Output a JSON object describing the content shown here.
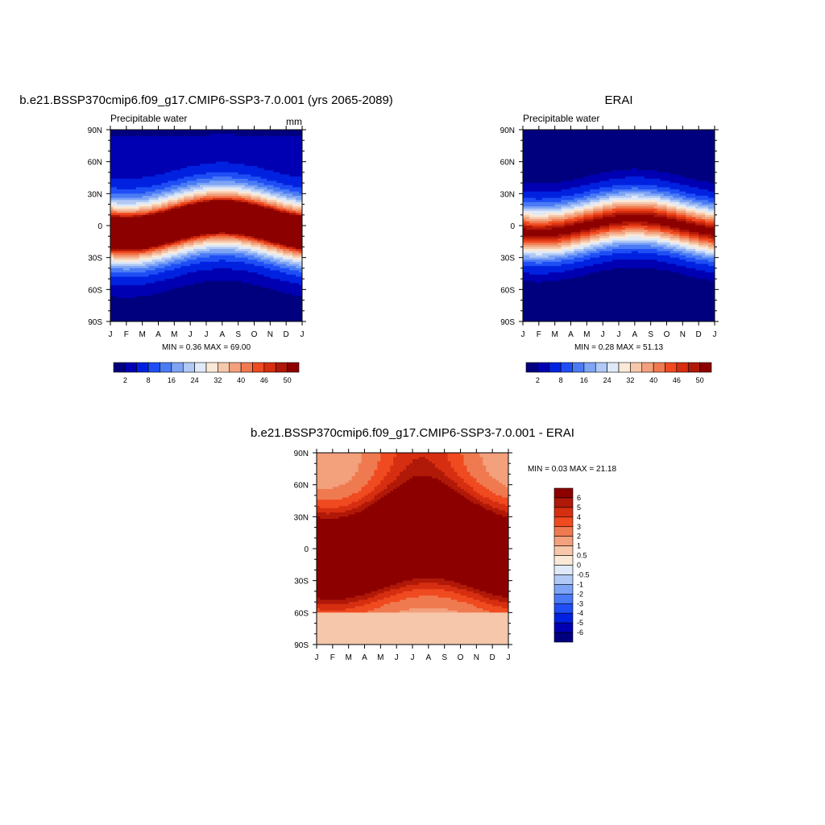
{
  "chart_data": [
    {
      "type": "heatmap",
      "title": "b.e21.BSSP370cmip6.f09_g17.CMIP6-SSP3-7.0.001 (yrs 2065-2089)",
      "subtitle_left": "Precipitable water",
      "subtitle_right": "mm",
      "x_ticks": [
        "J",
        "F",
        "M",
        "A",
        "M",
        "J",
        "J",
        "A",
        "S",
        "O",
        "N",
        "D",
        "J"
      ],
      "y_ticks": [
        "90N",
        "60N",
        "30N",
        "0",
        "30S",
        "60S",
        "90S"
      ],
      "y_tick_values": [
        90,
        60,
        30,
        0,
        -30,
        -60,
        -90
      ],
      "stats": "MIN =   0.36 MAX =  69.00",
      "min": 0.36,
      "max": 69.0,
      "colorbar": {
        "orientation": "horizontal",
        "levels": [
          0,
          2,
          4,
          8,
          12,
          16,
          20,
          24,
          28,
          32,
          36,
          40,
          43,
          46,
          48,
          50
        ],
        "labels": [
          "2",
          "8",
          "16",
          "24",
          "32",
          "40",
          "46",
          "50"
        ],
        "label_index": [
          1,
          3,
          5,
          7,
          9,
          11,
          13,
          15
        ]
      }
    },
    {
      "type": "heatmap",
      "title": "ERAI",
      "subtitle_left": "Precipitable water",
      "x_ticks": [
        "J",
        "F",
        "M",
        "A",
        "M",
        "J",
        "J",
        "A",
        "S",
        "O",
        "N",
        "D",
        "J"
      ],
      "y_ticks": [
        "90N",
        "60N",
        "30N",
        "0",
        "30S",
        "60S",
        "90S"
      ],
      "y_tick_values": [
        90,
        60,
        30,
        0,
        -30,
        -60,
        -90
      ],
      "stats": "MIN =   0.28 MAX =  51.13",
      "min": 0.28,
      "max": 51.13,
      "colorbar": {
        "orientation": "horizontal",
        "levels": [
          0,
          2,
          4,
          8,
          12,
          16,
          20,
          24,
          28,
          32,
          36,
          40,
          43,
          46,
          48,
          50
        ],
        "labels": [
          "2",
          "8",
          "16",
          "24",
          "32",
          "40",
          "46",
          "50"
        ],
        "label_index": [
          1,
          3,
          5,
          7,
          9,
          11,
          13,
          15
        ]
      }
    },
    {
      "type": "heatmap",
      "title": "b.e21.BSSP370cmip6.f09_g17.CMIP6-SSP3-7.0.001 - ERAI",
      "x_ticks": [
        "J",
        "F",
        "M",
        "A",
        "M",
        "J",
        "J",
        "A",
        "S",
        "O",
        "N",
        "D",
        "J"
      ],
      "y_ticks": [
        "90N",
        "60N",
        "30N",
        "0",
        "30S",
        "60S",
        "90S"
      ],
      "y_tick_values": [
        90,
        60,
        30,
        0,
        -30,
        -60,
        -90
      ],
      "stats": "MIN =   0.03 MAX =  21.18",
      "min": 0.03,
      "max": 21.18,
      "colorbar": {
        "orientation": "vertical",
        "labels": [
          "6",
          "5",
          "4",
          "3",
          "2",
          "1",
          "0.5",
          "0",
          "-0.5",
          "-1",
          "-2",
          "-3",
          "-4",
          "-5",
          "-6"
        ]
      }
    }
  ],
  "palettes": {
    "blue_red_16": [
      "#00007f",
      "#0000b2",
      "#0022e0",
      "#1f4ef5",
      "#4a7bf5",
      "#7ea4f5",
      "#b0c9f5",
      "#dfe9f8",
      "#fbe9d8",
      "#f6c7aa",
      "#f3a07c",
      "#f07a50",
      "#f04a20",
      "#d62e10",
      "#b01808",
      "#8c0000"
    ],
    "diff_16": [
      "#8c0000",
      "#b01808",
      "#d62e10",
      "#f04a20",
      "#f07a50",
      "#f3a07c",
      "#f6c7aa",
      "#fbe9d8",
      "#dfe9f8",
      "#b0c9f5",
      "#7ea4f5",
      "#4a7bf5",
      "#1f4ef5",
      "#0022e0",
      "#0000b2",
      "#00007f"
    ]
  }
}
